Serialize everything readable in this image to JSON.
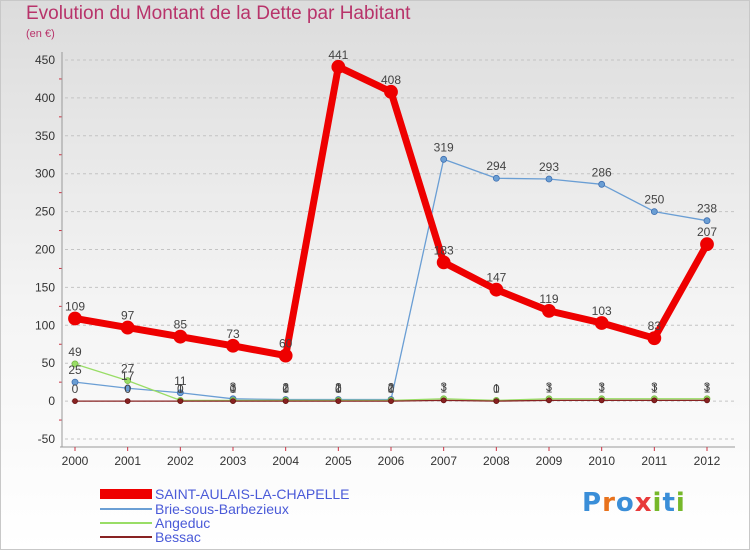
{
  "chart_data": {
    "type": "line",
    "title": "Evolution du Montant de la Dette par Habitant",
    "subtitle": "(en €)",
    "xlabel": "",
    "ylabel": "",
    "categories": [
      "2000",
      "2001",
      "2002",
      "2003",
      "2004",
      "2005",
      "2006",
      "2007",
      "2008",
      "2009",
      "2010",
      "2011",
      "2012"
    ],
    "ylim": [
      -50,
      450
    ],
    "yticks": [
      -50,
      0,
      50,
      100,
      150,
      200,
      250,
      300,
      350,
      400,
      450
    ],
    "grid": "horizontal dashed",
    "series": [
      {
        "name": "SAINT-AULAIS-LA-CHAPELLE",
        "color": "#ee0000",
        "values": [
          109,
          97,
          85,
          73,
          60,
          441,
          408,
          183,
          147,
          119,
          103,
          83,
          207
        ],
        "labels": [
          "109",
          "97",
          "85",
          "73",
          "60",
          "441",
          "408",
          "183",
          "147",
          "119",
          "103",
          "83",
          "207"
        ]
      },
      {
        "name": "Brie-sous-Barbezieux",
        "color": "#6a9ed4",
        "values": [
          25,
          17,
          11,
          3,
          2,
          2,
          2,
          319,
          294,
          293,
          286,
          250,
          238
        ],
        "labels": [
          "25",
          "17",
          "11",
          "3",
          "2",
          "2",
          "2",
          "319",
          "294",
          "293",
          "286",
          "250",
          "238"
        ]
      },
      {
        "name": "Angeduc",
        "color": "#99dd66",
        "values": [
          49,
          27,
          1,
          1,
          1,
          1,
          1,
          3,
          1,
          3,
          3,
          3,
          3
        ],
        "labels": [
          "49",
          "27",
          "1",
          "1",
          "1",
          "1",
          "1",
          "3",
          "1",
          "3",
          "3",
          "3",
          "3"
        ]
      },
      {
        "name": "Bessac",
        "color": "#882222",
        "values": [
          0,
          0,
          0,
          0,
          0,
          0,
          0,
          1,
          0,
          1,
          1,
          1,
          1
        ],
        "labels": [
          "0",
          "0",
          "0",
          "0",
          "0",
          "0",
          "0",
          "1",
          "0",
          "1",
          "1",
          "1",
          "1"
        ]
      }
    ]
  },
  "logo": {
    "text": "Proxiti"
  }
}
